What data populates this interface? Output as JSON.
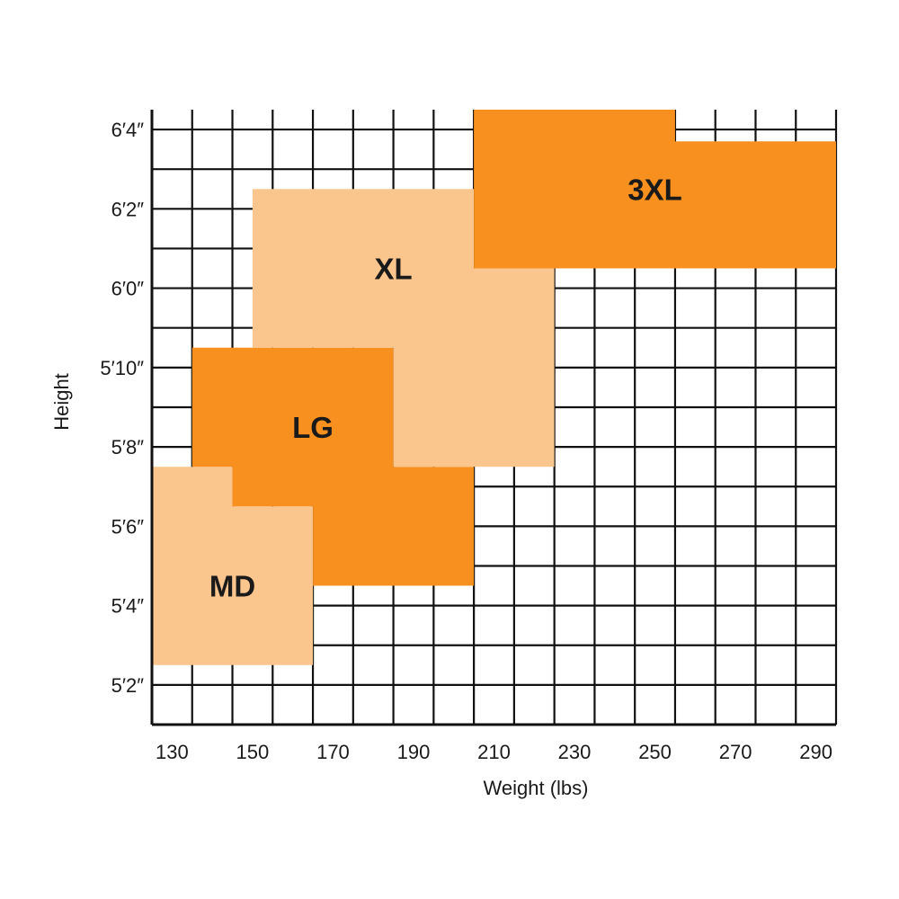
{
  "chart_data": {
    "type": "heatmap",
    "title": "",
    "xlabel": "Weight (lbs)",
    "ylabel": "Height",
    "x_unit": "lbs",
    "y_unit": "inches",
    "x_range": [
      125,
      295
    ],
    "y_range": [
      61,
      76.5
    ],
    "x_ticks": [
      {
        "value": 130,
        "label": "130"
      },
      {
        "value": 150,
        "label": "150"
      },
      {
        "value": 170,
        "label": "170"
      },
      {
        "value": 190,
        "label": "190"
      },
      {
        "value": 210,
        "label": "210"
      },
      {
        "value": 230,
        "label": "230"
      },
      {
        "value": 250,
        "label": "250"
      },
      {
        "value": 270,
        "label": "270"
      },
      {
        "value": 290,
        "label": "290"
      }
    ],
    "y_ticks": [
      {
        "value": 62,
        "label": "5′2″"
      },
      {
        "value": 64,
        "label": "5′4″"
      },
      {
        "value": 66,
        "label": "5′6″"
      },
      {
        "value": 68,
        "label": "5′8″"
      },
      {
        "value": 70,
        "label": "5′10″"
      },
      {
        "value": 72,
        "label": "6′0″"
      },
      {
        "value": 74,
        "label": "6′2″"
      },
      {
        "value": 76,
        "label": "6′4″"
      }
    ],
    "grid": true,
    "colors": {
      "light": "#fbc58e",
      "dark": "#f7901e",
      "grid": "#111111"
    },
    "regions": [
      {
        "name": "MD",
        "color": "light",
        "polygon": [
          [
            125,
            62.5
          ],
          [
            125,
            67.5
          ],
          [
            145,
            67.5
          ],
          [
            145,
            66.5
          ],
          [
            165,
            66.5
          ],
          [
            165,
            62.5
          ]
        ],
        "label_at": [
          145,
          64.5
        ]
      },
      {
        "name": "LG",
        "color": "dark",
        "polygon": [
          [
            135,
            67.5
          ],
          [
            135,
            70.5
          ],
          [
            185,
            70.5
          ],
          [
            185,
            67.5
          ],
          [
            205,
            67.5
          ],
          [
            205,
            64.5
          ],
          [
            165,
            64.5
          ],
          [
            165,
            66.5
          ],
          [
            145,
            66.5
          ],
          [
            145,
            67.5
          ]
        ],
        "label_at": [
          165,
          68.5
        ]
      },
      {
        "name": "XL",
        "color": "light",
        "polygon": [
          [
            150,
            70.5
          ],
          [
            150,
            74.5
          ],
          [
            205,
            74.5
          ],
          [
            205,
            72.5
          ],
          [
            225,
            72.5
          ],
          [
            225,
            67.5
          ],
          [
            185,
            67.5
          ],
          [
            185,
            70.5
          ]
        ],
        "label_at": [
          185,
          72.5
        ]
      },
      {
        "name": "3XL",
        "color": "dark",
        "polygon": [
          [
            205,
            72.5
          ],
          [
            205,
            76.5
          ],
          [
            255,
            76.5
          ],
          [
            255,
            75.7
          ],
          [
            295,
            75.7
          ],
          [
            295,
            72.5
          ]
        ],
        "label_at": [
          250,
          74.5
        ]
      }
    ]
  }
}
